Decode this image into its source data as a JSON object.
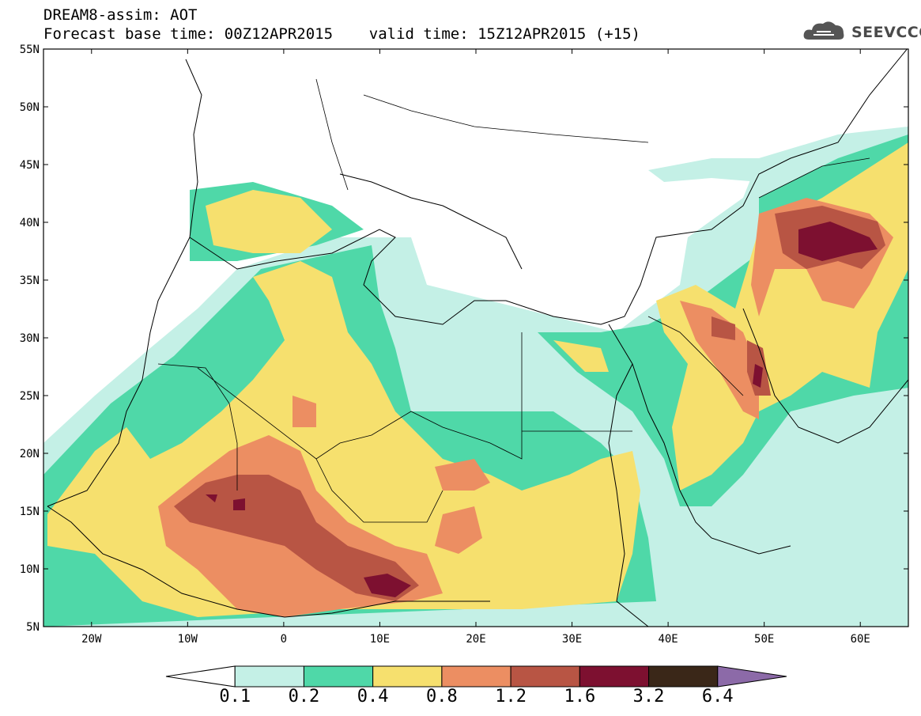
{
  "header": {
    "line1": "DREAM8-assim: AOT",
    "line2": "Forecast base time: 00Z12APR2015    valid time: 15Z12APR2015 (+15)",
    "logo_text": "SEEVCCC"
  },
  "axes": {
    "x_ticks": [
      "20W",
      "10W",
      "0",
      "10E",
      "20E",
      "30E",
      "40E",
      "50E",
      "60E"
    ],
    "x_values": [
      -20,
      -10,
      0,
      10,
      20,
      30,
      40,
      50,
      60
    ],
    "y_ticks": [
      "55N",
      "50N",
      "45N",
      "40N",
      "35N",
      "30N",
      "25N",
      "20N",
      "15N",
      "10N",
      "5N"
    ],
    "y_values": [
      55,
      50,
      45,
      40,
      35,
      30,
      25,
      20,
      15,
      10,
      5
    ],
    "lon_range": [
      -25,
      65
    ],
    "lat_range": [
      5,
      55
    ]
  },
  "colorbar": {
    "labels": [
      "0.1",
      "0.2",
      "0.4",
      "0.8",
      "1.2",
      "1.6",
      "3.2",
      "6.4"
    ],
    "colors": [
      "#ffffff",
      "#c4f0e6",
      "#4fd8a8",
      "#f6e06e",
      "#ec8e62",
      "#b85544",
      "#7d1030",
      "#3a2718",
      "#8c6aa8"
    ]
  },
  "colors": {
    "c1": "#c4f0e6",
    "c2": "#4fd8a8",
    "c3": "#f6e06e",
    "c4": "#ec8e62",
    "c5": "#b85544",
    "c6": "#7d1030"
  }
}
